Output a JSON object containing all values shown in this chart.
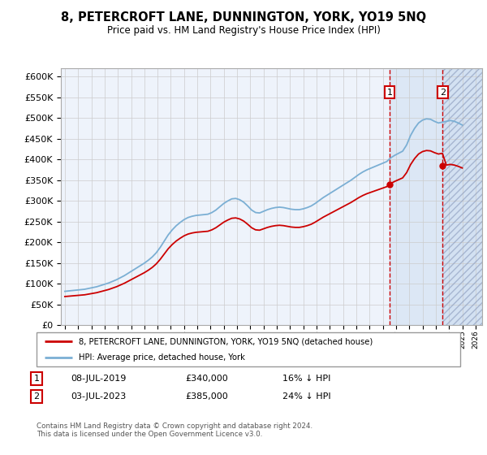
{
  "title": "8, PETERCROFT LANE, DUNNINGTON, YORK, YO19 5NQ",
  "subtitle": "Price paid vs. HM Land Registry's House Price Index (HPI)",
  "ylim": [
    0,
    620000
  ],
  "yticks": [
    0,
    50000,
    100000,
    150000,
    200000,
    250000,
    300000,
    350000,
    400000,
    450000,
    500000,
    550000,
    600000
  ],
  "xlim_start": 1994.7,
  "xlim_end": 2026.5,
  "legend_line1": "8, PETERCROFT LANE, DUNNINGTON, YORK, YO19 5NQ (detached house)",
  "legend_line2": "HPI: Average price, detached house, York",
  "transaction1_date": "08-JUL-2019",
  "transaction1_price": 340000,
  "transaction1_hpi": "16% ↓ HPI",
  "transaction2_date": "03-JUL-2023",
  "transaction2_price": 385000,
  "transaction2_hpi": "24% ↓ HPI",
  "footnote": "Contains HM Land Registry data © Crown copyright and database right 2024.\nThis data is licensed under the Open Government Licence v3.0.",
  "hpi_color": "#7bafd4",
  "price_color": "#cc0000",
  "background_color": "#ffffff",
  "grid_color": "#cccccc",
  "plot_bg_color": "#eef3fb",
  "shade_color": "#ccddf0",
  "marker1_x": 2019.52,
  "marker2_x": 2023.51,
  "hpi_data_x": [
    1995.0,
    1995.3,
    1995.6,
    1995.9,
    1996.2,
    1996.5,
    1996.8,
    1997.1,
    1997.4,
    1997.7,
    1998.0,
    1998.3,
    1998.6,
    1998.9,
    1999.2,
    1999.5,
    1999.8,
    2000.1,
    2000.4,
    2000.7,
    2001.0,
    2001.3,
    2001.6,
    2001.9,
    2002.2,
    2002.5,
    2002.8,
    2003.1,
    2003.4,
    2003.7,
    2004.0,
    2004.3,
    2004.6,
    2004.9,
    2005.2,
    2005.5,
    2005.8,
    2006.1,
    2006.4,
    2006.7,
    2007.0,
    2007.3,
    2007.6,
    2007.9,
    2008.2,
    2008.5,
    2008.8,
    2009.1,
    2009.4,
    2009.7,
    2010.0,
    2010.3,
    2010.6,
    2010.9,
    2011.2,
    2011.5,
    2011.8,
    2012.1,
    2012.4,
    2012.7,
    2013.0,
    2013.3,
    2013.6,
    2013.9,
    2014.2,
    2014.5,
    2014.8,
    2015.1,
    2015.4,
    2015.7,
    2016.0,
    2016.3,
    2016.6,
    2016.9,
    2017.2,
    2017.5,
    2017.8,
    2018.1,
    2018.4,
    2018.7,
    2019.0,
    2019.3,
    2019.6,
    2019.9,
    2020.2,
    2020.5,
    2020.8,
    2021.1,
    2021.4,
    2021.7,
    2022.0,
    2022.3,
    2022.6,
    2022.9,
    2023.2,
    2023.5,
    2023.8,
    2024.1,
    2024.4,
    2024.7,
    2025.0
  ],
  "hpi_data_y": [
    82000,
    83000,
    84000,
    85000,
    86000,
    87000,
    89000,
    91000,
    93000,
    96000,
    99000,
    102000,
    106000,
    110000,
    115000,
    120000,
    126000,
    132000,
    138000,
    144000,
    150000,
    157000,
    165000,
    175000,
    188000,
    203000,
    218000,
    230000,
    240000,
    248000,
    255000,
    260000,
    263000,
    265000,
    266000,
    267000,
    268000,
    272000,
    278000,
    286000,
    294000,
    300000,
    305000,
    306000,
    303000,
    297000,
    288000,
    278000,
    272000,
    271000,
    275000,
    279000,
    282000,
    284000,
    285000,
    284000,
    282000,
    280000,
    279000,
    279000,
    281000,
    284000,
    288000,
    294000,
    301000,
    308000,
    314000,
    320000,
    326000,
    332000,
    338000,
    344000,
    350000,
    357000,
    364000,
    370000,
    375000,
    379000,
    383000,
    387000,
    391000,
    395000,
    404000,
    410000,
    415000,
    420000,
    435000,
    458000,
    475000,
    488000,
    495000,
    498000,
    497000,
    492000,
    488000,
    490000,
    492000,
    494000,
    492000,
    488000,
    483000
  ]
}
